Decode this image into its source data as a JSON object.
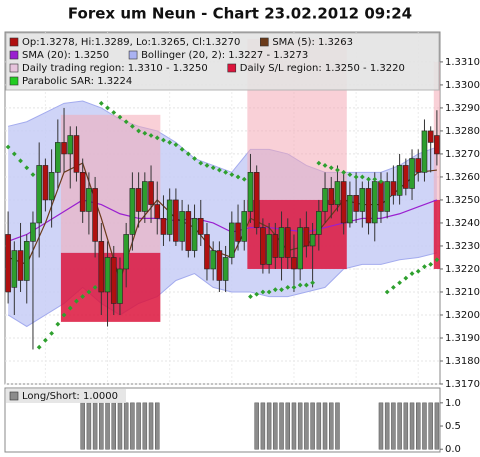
{
  "chart_data": {
    "type": "candlestick",
    "title": "Forex um Neun - Chart 23.02.2012 09:24",
    "ylim": [
      1.317,
      1.3323
    ],
    "yticks": [
      {
        "value": 1.331,
        "label": "1.3310"
      },
      {
        "value": 1.33,
        "label": "1.3300"
      },
      {
        "value": 1.329,
        "label": "1.3290"
      },
      {
        "value": 1.328,
        "label": "1.3280"
      },
      {
        "value": 1.327,
        "label": "1.3270"
      },
      {
        "value": 1.326,
        "label": "1.3260"
      },
      {
        "value": 1.325,
        "label": "1.3250"
      },
      {
        "value": 1.324,
        "label": "1.3240"
      },
      {
        "value": 1.323,
        "label": "1.3230"
      },
      {
        "value": 1.322,
        "label": "1.3220"
      },
      {
        "value": 1.321,
        "label": "1.3210"
      },
      {
        "value": 1.32,
        "label": "1.3200"
      },
      {
        "value": 1.319,
        "label": "1.3190"
      },
      {
        "value": 1.318,
        "label": "1.3180"
      },
      {
        "value": 1.317,
        "label": "1.3170"
      }
    ],
    "grid": true,
    "colors": {
      "up": "#2e9e2e",
      "down": "#b01010"
    },
    "ohlc": [
      [
        1.3235,
        1.3245,
        1.3205,
        1.321
      ],
      [
        1.3212,
        1.3232,
        1.32,
        1.3228
      ],
      [
        1.3228,
        1.324,
        1.321,
        1.3215
      ],
      [
        1.3215,
        1.3235,
        1.3205,
        1.3232
      ],
      [
        1.3232,
        1.3245,
        1.3185,
        1.324
      ],
      [
        1.324,
        1.3275,
        1.3225,
        1.3265
      ],
      [
        1.3265,
        1.3268,
        1.3245,
        1.325
      ],
      [
        1.325,
        1.3272,
        1.3238,
        1.3262
      ],
      [
        1.3262,
        1.3285,
        1.3255,
        1.3275
      ],
      [
        1.3275,
        1.329,
        1.3262,
        1.327
      ],
      [
        1.327,
        1.3282,
        1.3255,
        1.3278
      ],
      [
        1.3278,
        1.3282,
        1.3258,
        1.3262
      ],
      [
        1.3262,
        1.3268,
        1.324,
        1.3245
      ],
      [
        1.3245,
        1.3262,
        1.3235,
        1.3255
      ],
      [
        1.3255,
        1.326,
        1.3225,
        1.3232
      ],
      [
        1.3232,
        1.324,
        1.32,
        1.321
      ],
      [
        1.321,
        1.3232,
        1.3195,
        1.3225
      ],
      [
        1.3225,
        1.323,
        1.32,
        1.3205
      ],
      [
        1.3205,
        1.3225,
        1.32,
        1.322
      ],
      [
        1.322,
        1.324,
        1.3212,
        1.3235
      ],
      [
        1.3235,
        1.3262,
        1.3228,
        1.3255
      ],
      [
        1.3255,
        1.3262,
        1.3238,
        1.3245
      ],
      [
        1.3245,
        1.3262,
        1.324,
        1.3258
      ],
      [
        1.3258,
        1.3265,
        1.324,
        1.3248
      ],
      [
        1.3248,
        1.3258,
        1.3235,
        1.3242
      ],
      [
        1.3242,
        1.3252,
        1.323,
        1.3235
      ],
      [
        1.3235,
        1.3255,
        1.3232,
        1.325
      ],
      [
        1.325,
        1.3255,
        1.323,
        1.3232
      ],
      [
        1.3232,
        1.325,
        1.3228,
        1.3245
      ],
      [
        1.3245,
        1.3248,
        1.3225,
        1.3228
      ],
      [
        1.3228,
        1.3248,
        1.3225,
        1.3242
      ],
      [
        1.3242,
        1.325,
        1.323,
        1.3235
      ],
      [
        1.3235,
        1.324,
        1.3215,
        1.322
      ],
      [
        1.322,
        1.3232,
        1.3215,
        1.3228
      ],
      [
        1.3228,
        1.3232,
        1.321,
        1.3215
      ],
      [
        1.3215,
        1.323,
        1.321,
        1.3225
      ],
      [
        1.3225,
        1.3245,
        1.3222,
        1.324
      ],
      [
        1.324,
        1.3248,
        1.3228,
        1.3232
      ],
      [
        1.3232,
        1.325,
        1.3228,
        1.3245
      ],
      [
        1.3245,
        1.327,
        1.324,
        1.3262
      ],
      [
        1.3262,
        1.3265,
        1.3235,
        1.3238
      ],
      [
        1.3238,
        1.3242,
        1.3218,
        1.3222
      ],
      [
        1.3222,
        1.324,
        1.3218,
        1.3235
      ],
      [
        1.3235,
        1.324,
        1.322,
        1.3225
      ],
      [
        1.3225,
        1.3245,
        1.3215,
        1.3238
      ],
      [
        1.3238,
        1.3242,
        1.322,
        1.3225
      ],
      [
        1.3225,
        1.3235,
        1.321,
        1.322
      ],
      [
        1.322,
        1.3242,
        1.3215,
        1.3238
      ],
      [
        1.3238,
        1.3245,
        1.3225,
        1.323
      ],
      [
        1.323,
        1.324,
        1.3212,
        1.3235
      ],
      [
        1.3235,
        1.325,
        1.3228,
        1.3245
      ],
      [
        1.3245,
        1.3262,
        1.324,
        1.3255
      ],
      [
        1.3255,
        1.326,
        1.3242,
        1.3248
      ],
      [
        1.3248,
        1.3265,
        1.3245,
        1.3258
      ],
      [
        1.3258,
        1.3262,
        1.3235,
        1.324
      ],
      [
        1.324,
        1.3258,
        1.3238,
        1.3252
      ],
      [
        1.3252,
        1.3262,
        1.324,
        1.3245
      ],
      [
        1.3245,
        1.3258,
        1.3238,
        1.3255
      ],
      [
        1.3255,
        1.326,
        1.3235,
        1.324
      ],
      [
        1.324,
        1.3262,
        1.3232,
        1.3258
      ],
      [
        1.3258,
        1.3262,
        1.324,
        1.3245
      ],
      [
        1.3245,
        1.3262,
        1.3242,
        1.3258
      ],
      [
        1.3258,
        1.3265,
        1.3248,
        1.3252
      ],
      [
        1.3252,
        1.327,
        1.3248,
        1.3265
      ],
      [
        1.3265,
        1.3268,
        1.3252,
        1.3255
      ],
      [
        1.3255,
        1.3272,
        1.325,
        1.3268
      ],
      [
        1.3268,
        1.3272,
        1.3258,
        1.3262
      ],
      [
        1.3262,
        1.3285,
        1.3258,
        1.328
      ],
      [
        1.328,
        1.3282,
        1.3262,
        1.3275
      ],
      [
        1.3278,
        1.3289,
        1.3265,
        1.327
      ]
    ],
    "line_x": [
      0,
      3,
      6,
      9,
      12,
      15,
      18,
      21,
      24,
      27,
      30,
      33,
      36,
      39,
      42,
      45,
      48,
      51,
      54,
      57,
      60,
      63,
      66,
      69
    ],
    "bollinger": {
      "color": "#c7ccf6",
      "edge": "#a3abee",
      "upper": [
        1.3282,
        1.3284,
        1.3288,
        1.3292,
        1.3293,
        1.329,
        1.3285,
        1.3282,
        1.328,
        1.3275,
        1.3268,
        1.3265,
        1.3262,
        1.3272,
        1.3272,
        1.327,
        1.3265,
        1.3262,
        1.3262,
        1.3262,
        1.3262,
        1.3265,
        1.327,
        1.3273
      ],
      "lower": [
        1.32,
        1.3195,
        1.32,
        1.3205,
        1.3212,
        1.3205,
        1.32,
        1.3205,
        1.3208,
        1.3215,
        1.3218,
        1.3212,
        1.321,
        1.321,
        1.3208,
        1.3208,
        1.321,
        1.3212,
        1.322,
        1.3222,
        1.3222,
        1.3224,
        1.3225,
        1.3227
      ]
    },
    "sma20": {
      "color": "#9a1fd0",
      "values": [
        1.3232,
        1.3235,
        1.324,
        1.3245,
        1.325,
        1.3248,
        1.3244,
        1.3242,
        1.3242,
        1.3241,
        1.3242,
        1.324,
        1.3236,
        1.3238,
        1.3238,
        1.3237,
        1.3236,
        1.3238,
        1.324,
        1.3242,
        1.3242,
        1.3244,
        1.3247,
        1.325
      ]
    },
    "sma5": {
      "color": "#6b3a1a",
      "values": [
        1.3225,
        1.3222,
        1.324,
        1.3262,
        1.3266,
        1.3242,
        1.3215,
        1.324,
        1.325,
        1.3242,
        1.3238,
        1.3228,
        1.3225,
        1.3242,
        1.3238,
        1.3228,
        1.323,
        1.324,
        1.325,
        1.3248,
        1.3248,
        1.3255,
        1.3262,
        1.3263
      ]
    },
    "sar": {
      "color": "#2ea02e",
      "values": [
        1.3273,
        1.327,
        1.3267,
        1.3264,
        1.3261,
        1.3186,
        1.3189,
        1.3192,
        1.3196,
        1.32,
        1.3203,
        1.3206,
        1.3208,
        1.321,
        1.3212,
        1.3292,
        1.329,
        1.3288,
        1.3286,
        1.3284,
        1.3282,
        1.328,
        1.3279,
        1.3278,
        1.3277,
        1.3276,
        1.3275,
        1.3274,
        1.3272,
        1.327,
        1.3268,
        1.3266,
        1.3265,
        1.3264,
        1.3263,
        1.3262,
        1.3261,
        1.326,
        1.3259,
        1.3208,
        1.3209,
        1.321,
        1.321,
        1.3211,
        1.3211,
        1.3212,
        1.3212,
        1.3213,
        1.3213,
        1.3214,
        1.3266,
        1.3265,
        1.3264,
        1.3263,
        1.3262,
        1.3261,
        1.326,
        1.326,
        1.3259,
        1.3259,
        1.3258,
        1.321,
        1.3212,
        1.3214,
        1.3216,
        1.3218,
        1.3219,
        1.3221,
        1.3222,
        1.3224
      ]
    },
    "regions": [
      {
        "start": 9,
        "end": 24,
        "trading": [
          1.3287,
          1.3227
        ],
        "sl": [
          1.3227,
          1.3197
        ]
      },
      {
        "start": 39,
        "end": 54,
        "trading": [
          1.332,
          1.325
        ],
        "sl": [
          1.325,
          1.322
        ]
      },
      {
        "start": 69,
        "end": 69,
        "trading": [
          1.331,
          1.325
        ],
        "sl": [
          1.325,
          1.322
        ]
      }
    ],
    "region_colors": {
      "trading": "#f4a9b6",
      "sl": "#dc143c"
    },
    "legend": [
      {
        "label": "Op:1.3278, Hi:1.3289, Lo:1.3265, Cl:1.3270",
        "color": "#b01010"
      },
      {
        "label": "SMA (5): 1.3263",
        "color": "#6b3a1a"
      },
      {
        "label": "SMA (20): 1.3250",
        "color": "#9a1fd0"
      },
      {
        "label": "Bollinger (20, 2): 1.3227 - 1.3273",
        "color": "#aab2f2"
      },
      {
        "label": "Daily trading region: 1.3310 - 1.3250",
        "color": "#e6c4dc"
      },
      {
        "label": "Daily S/L region: 1.3250 - 1.3220",
        "color": "#dc143c"
      },
      {
        "label": "Parabolic SAR: 1.3224",
        "color": "#22cc22"
      }
    ],
    "lower": {
      "type": "bar",
      "legend": "Long/Short: 1.0000",
      "color": "#8c8c8c",
      "values": [
        0,
        0,
        0,
        0,
        0,
        0,
        0,
        0,
        0,
        0,
        0,
        0,
        1,
        1,
        1,
        1,
        1,
        1,
        1,
        1,
        1,
        1,
        1,
        1,
        1,
        0,
        0,
        0,
        0,
        0,
        0,
        0,
        0,
        0,
        0,
        0,
        0,
        0,
        0,
        0,
        1,
        1,
        1,
        1,
        1,
        1,
        1,
        1,
        1,
        1,
        1,
        1,
        1,
        1,
        0,
        0,
        0,
        0,
        0,
        0,
        1,
        1,
        1,
        1,
        1,
        1,
        1,
        1,
        1,
        1
      ],
      "ylim": [
        -0.06,
        1.32
      ],
      "yticks": [
        {
          "value": 1,
          "label": "1.0"
        },
        0.5,
        {
          "value": 0,
          "label": "0.0"
        }
      ]
    }
  }
}
